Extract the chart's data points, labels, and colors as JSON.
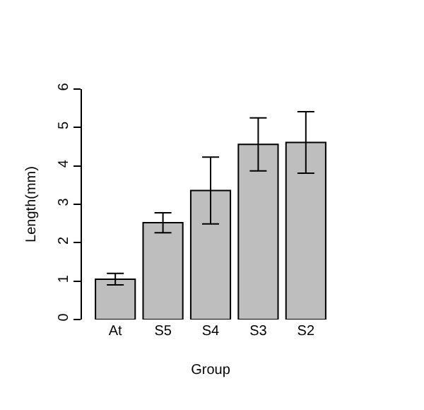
{
  "chart_data": {
    "type": "bar",
    "xlabel": "Group",
    "ylabel": "Length(mm)",
    "categories": [
      "At",
      "S5",
      "S4",
      "S3",
      "S2"
    ],
    "values": [
      1.05,
      2.52,
      3.36,
      4.56,
      4.61
    ],
    "errors": [
      0.15,
      0.26,
      0.87,
      0.69,
      0.8
    ],
    "color": "#bebebe",
    "ylim": [
      0,
      6
    ],
    "yticks": [
      0,
      1,
      2,
      3,
      4,
      5,
      6
    ],
    "grid": false
  }
}
